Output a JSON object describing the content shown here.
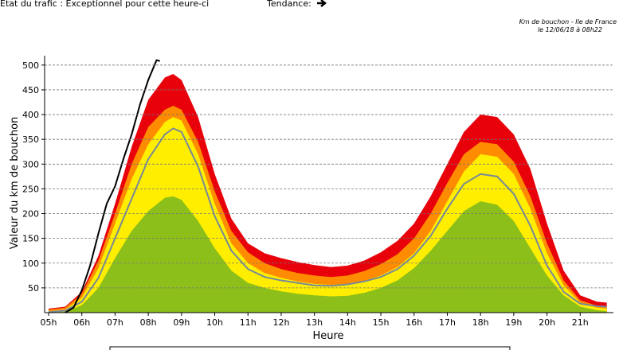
{
  "chart_data": {
    "type": "area",
    "status": "Etat du trafic : Exceptionnel pour cette heure-ci",
    "trend": "Tendance:",
    "title": "Km de bouchon - Ile de France",
    "subtitle": "le 12/06/18 à 08h22",
    "ylabel": "Valeur du  km de bouchon",
    "xlabel": "Heure",
    "xlim": [
      4.88,
      22.0
    ],
    "ylim": [
      0,
      519
    ],
    "grid": true,
    "xticks": [
      {
        "value": 5,
        "label": "05h"
      },
      {
        "value": 6,
        "label": "06h"
      },
      {
        "value": 7,
        "label": "07h"
      },
      {
        "value": 8,
        "label": "08h"
      },
      {
        "value": 9,
        "label": "09h"
      },
      {
        "value": 10,
        "label": "10h"
      },
      {
        "value": 11,
        "label": "11h"
      },
      {
        "value": 12,
        "label": "12h"
      },
      {
        "value": 13,
        "label": "13h"
      },
      {
        "value": 14,
        "label": "14h"
      },
      {
        "value": 15,
        "label": "15h"
      },
      {
        "value": 16,
        "label": "16h"
      },
      {
        "value": 17,
        "label": "17h"
      },
      {
        "value": 18,
        "label": "18h"
      },
      {
        "value": 19,
        "label": "19h"
      },
      {
        "value": 20,
        "label": "20h"
      },
      {
        "value": 21,
        "label": "21h"
      }
    ],
    "yticks": [
      50,
      100,
      150,
      200,
      250,
      300,
      350,
      400,
      450,
      500
    ],
    "x": [
      5,
      5.5,
      6,
      6.5,
      7,
      7.5,
      8,
      8.5,
      8.75,
      9,
      9.5,
      10,
      10.5,
      11,
      11.5,
      12,
      12.5,
      13,
      13.5,
      14,
      14.5,
      15,
      15.5,
      16,
      16.5,
      17,
      17.5,
      18,
      18.5,
      19,
      19.5,
      20,
      20.5,
      21,
      21.5,
      21.8
    ],
    "series": [
      {
        "draw": "area",
        "color": "#e8000b",
        "values": [
          8,
          12,
          42,
          115,
          220,
          335,
          430,
          475,
          482,
          470,
          395,
          280,
          190,
          140,
          120,
          110,
          102,
          96,
          92,
          95,
          105,
          122,
          145,
          180,
          235,
          300,
          365,
          400,
          395,
          360,
          290,
          180,
          85,
          35,
          22,
          20
        ]
      },
      {
        "draw": "area",
        "color": "#ff8c00",
        "values": [
          6,
          10,
          38,
          105,
          200,
          300,
          375,
          410,
          418,
          410,
          345,
          245,
          165,
          122,
          100,
          88,
          80,
          75,
          72,
          75,
          84,
          98,
          118,
          150,
          200,
          262,
          320,
          345,
          340,
          305,
          235,
          140,
          65,
          25,
          14,
          12
        ]
      },
      {
        "draw": "area",
        "color": "#ffee00",
        "values": [
          3,
          6,
          30,
          90,
          180,
          270,
          340,
          385,
          395,
          388,
          320,
          220,
          140,
          100,
          80,
          70,
          63,
          58,
          56,
          58,
          64,
          75,
          92,
          120,
          165,
          225,
          285,
          320,
          315,
          280,
          210,
          120,
          55,
          20,
          10,
          8
        ]
      },
      {
        "draw": "area",
        "color": "#8cbf1a",
        "values": [
          0,
          2,
          15,
          50,
          110,
          165,
          205,
          232,
          235,
          228,
          185,
          130,
          85,
          60,
          50,
          43,
          38,
          35,
          33,
          34,
          40,
          50,
          65,
          90,
          125,
          165,
          205,
          225,
          218,
          185,
          130,
          75,
          35,
          12,
          5,
          3
        ]
      },
      {
        "draw": "line",
        "color": "#778899",
        "values": [
          1,
          4,
          22,
          70,
          150,
          230,
          310,
          360,
          372,
          365,
          295,
          195,
          125,
          88,
          72,
          65,
          60,
          55,
          54,
          57,
          63,
          72,
          88,
          115,
          155,
          210,
          260,
          280,
          275,
          240,
          175,
          95,
          42,
          18,
          13,
          12
        ]
      },
      {
        "draw": "line",
        "color": "#000000",
        "x": [
          5.5,
          5.75,
          6,
          6.25,
          6.5,
          6.75,
          7,
          7.25,
          7.5,
          7.75,
          8,
          8.25,
          8.35
        ],
        "values": [
          0,
          10,
          45,
          95,
          160,
          220,
          255,
          310,
          360,
          420,
          470,
          510,
          508
        ]
      }
    ]
  }
}
